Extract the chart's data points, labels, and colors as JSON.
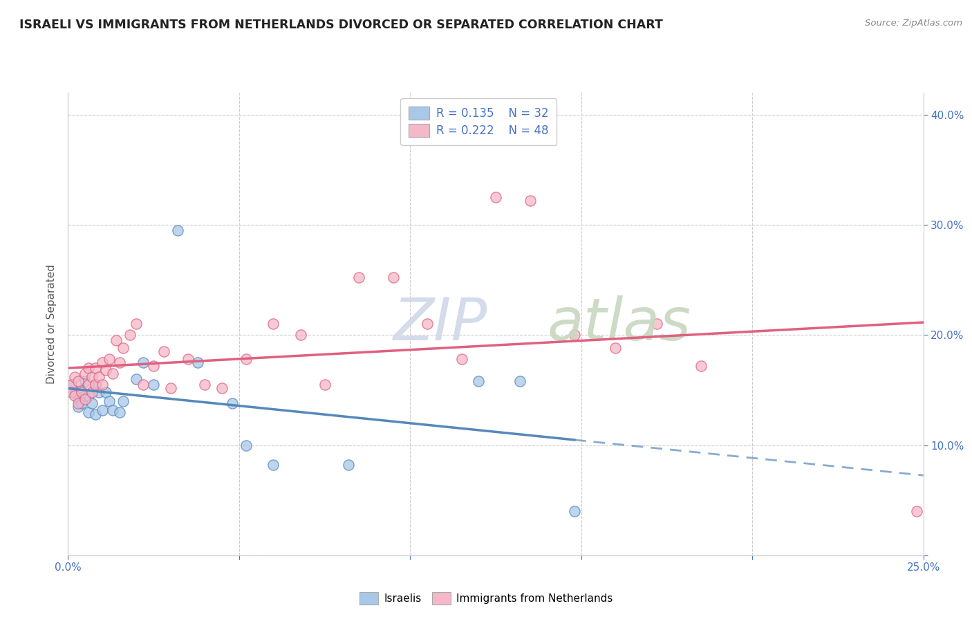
{
  "title": "ISRAELI VS IMMIGRANTS FROM NETHERLANDS DIVORCED OR SEPARATED CORRELATION CHART",
  "source": "Source: ZipAtlas.com",
  "ylabel": "Divorced or Separated",
  "legend_label1": "Israelis",
  "legend_label2": "Immigrants from Netherlands",
  "legend_R1": "R = 0.135",
  "legend_N1": "N = 32",
  "legend_R2": "R = 0.222",
  "legend_N2": "N = 48",
  "xmin": 0.0,
  "xmax": 0.25,
  "ymin": 0.0,
  "ymax": 0.42,
  "color_blue": "#a8c8e8",
  "color_pink": "#f4b8c8",
  "color_blue_line": "#5588bb",
  "color_pink_line": "#e06080",
  "watermark_zip": "ZIP",
  "watermark_atlas": "atlas",
  "israelis_x": [
    0.001,
    0.002,
    0.003,
    0.003,
    0.004,
    0.004,
    0.005,
    0.005,
    0.006,
    0.006,
    0.007,
    0.008,
    0.008,
    0.009,
    0.01,
    0.011,
    0.012,
    0.013,
    0.015,
    0.016,
    0.02,
    0.022,
    0.025,
    0.032,
    0.038,
    0.048,
    0.052,
    0.06,
    0.082,
    0.12,
    0.132,
    0.148
  ],
  "israelis_y": [
    0.155,
    0.148,
    0.142,
    0.135,
    0.15,
    0.138,
    0.158,
    0.145,
    0.13,
    0.145,
    0.138,
    0.155,
    0.128,
    0.148,
    0.132,
    0.148,
    0.14,
    0.132,
    0.13,
    0.14,
    0.16,
    0.175,
    0.155,
    0.295,
    0.175,
    0.138,
    0.1,
    0.082,
    0.082,
    0.158,
    0.158,
    0.04
  ],
  "netherlands_x": [
    0.001,
    0.001,
    0.002,
    0.002,
    0.003,
    0.003,
    0.004,
    0.005,
    0.005,
    0.006,
    0.006,
    0.007,
    0.007,
    0.008,
    0.008,
    0.009,
    0.01,
    0.01,
    0.011,
    0.012,
    0.013,
    0.014,
    0.015,
    0.016,
    0.018,
    0.02,
    0.022,
    0.025,
    0.028,
    0.03,
    0.035,
    0.04,
    0.045,
    0.052,
    0.06,
    0.068,
    0.075,
    0.085,
    0.095,
    0.105,
    0.115,
    0.125,
    0.135,
    0.148,
    0.16,
    0.172,
    0.185,
    0.248
  ],
  "netherlands_y": [
    0.155,
    0.148,
    0.162,
    0.145,
    0.138,
    0.158,
    0.148,
    0.165,
    0.142,
    0.17,
    0.155,
    0.148,
    0.162,
    0.155,
    0.17,
    0.162,
    0.155,
    0.175,
    0.168,
    0.178,
    0.165,
    0.195,
    0.175,
    0.188,
    0.2,
    0.21,
    0.155,
    0.172,
    0.185,
    0.152,
    0.178,
    0.155,
    0.152,
    0.178,
    0.21,
    0.2,
    0.155,
    0.252,
    0.252,
    0.21,
    0.178,
    0.325,
    0.322,
    0.2,
    0.188,
    0.21,
    0.172,
    0.04
  ]
}
